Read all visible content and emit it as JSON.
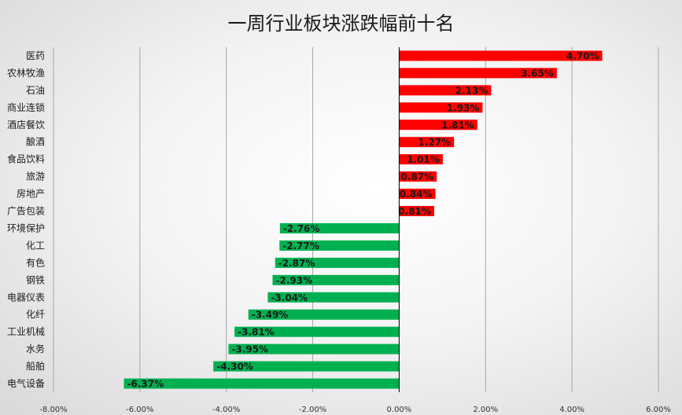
{
  "chart_data": {
    "type": "bar",
    "orientation": "horizontal",
    "title": "一周行业板块涨跌幅前十名",
    "categories": [
      "医药",
      "农林牧渔",
      "石油",
      "商业连锁",
      "酒店餐饮",
      "酿酒",
      "食品饮料",
      "旅游",
      "房地产",
      "广告包装",
      "环境保护",
      "化工",
      "有色",
      "钢铁",
      "电器仪表",
      "化纤",
      "工业机械",
      "水务",
      "船舶",
      "电气设备"
    ],
    "values": [
      4.7,
      3.65,
      2.13,
      1.93,
      1.81,
      1.27,
      1.01,
      0.87,
      0.84,
      0.81,
      -2.76,
      -2.77,
      -2.87,
      -2.93,
      -3.04,
      -3.49,
      -3.81,
      -3.95,
      -4.3,
      -6.37
    ],
    "value_labels": [
      "4.70%",
      "3.65%",
      "2.13%",
      "1.93%",
      "1.81%",
      "1.27%",
      "1.01%",
      "0.87%",
      "0.84%",
      "0.81%",
      "-2.76%",
      "-2.77%",
      "-2.87%",
      "-2.93%",
      "-3.04%",
      "-3.49%",
      "-3.81%",
      "-3.95%",
      "-4.30%",
      "-6.37%"
    ],
    "xlim": [
      -8,
      6
    ],
    "xticks": [
      -8,
      -6,
      -4,
      -2,
      0,
      2,
      4,
      6
    ],
    "xtick_labels": [
      "-8.00%",
      "-6.00%",
      "-4.00%",
      "-2.00%",
      "0.00%",
      "2.00%",
      "4.00%",
      "6.00%"
    ],
    "unit": "%",
    "grid": "vertical",
    "legend": "none",
    "colors": {
      "positive": "#ff0000",
      "negative": "#00b050",
      "grid": "#a6a6a6",
      "zero_line": "#000000"
    }
  }
}
